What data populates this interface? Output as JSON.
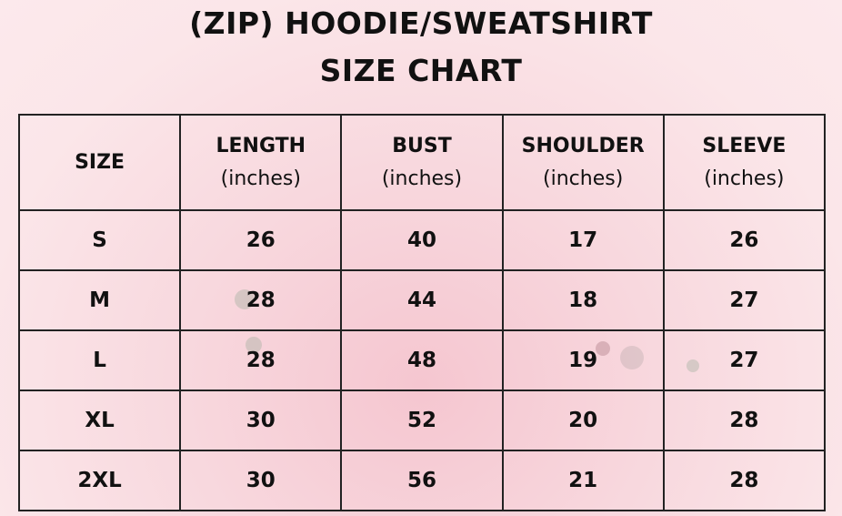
{
  "title_line1": "(ZIP) HOODIE/SWEATSHIRT",
  "title_line2": "SIZE CHART",
  "headers": [
    {
      "label": "SIZE",
      "unit": ""
    },
    {
      "label": "LENGTH",
      "unit": "(inches)"
    },
    {
      "label": "BUST",
      "unit": "(inches)"
    },
    {
      "label": "SHOULDER",
      "unit": "(inches)"
    },
    {
      "label": "SLEEVE",
      "unit": "(inches)"
    }
  ],
  "rows": [
    [
      "S",
      "26",
      "40",
      "17",
      "26"
    ],
    [
      "M",
      "28",
      "44",
      "18",
      "27"
    ],
    [
      "L",
      "28",
      "48",
      "19",
      "27"
    ],
    [
      "XL",
      "30",
      "52",
      "20",
      "28"
    ],
    [
      "2XL",
      "30",
      "56",
      "21",
      "28"
    ]
  ]
}
